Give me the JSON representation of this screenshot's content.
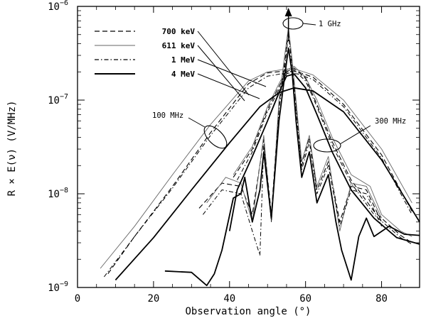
{
  "chart_data": {
    "type": "line",
    "xlabel": "Observation angle (°)",
    "ylabel": "R × E(ν) (V/MHz)",
    "xlim": [
      0,
      90
    ],
    "ylim": [
      1e-09,
      1e-06
    ],
    "yscale": "log",
    "grid": false,
    "legend_position": "top-left",
    "x_ticks": [
      {
        "value": 0,
        "label": "0"
      },
      {
        "value": 20,
        "label": "20"
      },
      {
        "value": 40,
        "label": "40"
      },
      {
        "value": 60,
        "label": "60"
      },
      {
        "value": 80,
        "label": "80"
      }
    ],
    "y_ticks": [
      {
        "value": 1e-09,
        "base": "10",
        "exp": "−9"
      },
      {
        "value": 1e-08,
        "base": "10",
        "exp": "−8"
      },
      {
        "value": 1e-07,
        "base": "10",
        "exp": "−7"
      },
      {
        "value": 1e-06,
        "base": "10",
        "exp": "−6"
      }
    ],
    "annotations": [
      {
        "text": "1 GHz",
        "x": 56.5,
        "y": 7e-07
      },
      {
        "text": "100 MHz",
        "x": 35,
        "y": 4e-08
      },
      {
        "text": "300 MHz",
        "x": 64,
        "y": 3.5e-08
      }
    ],
    "series": [
      {
        "name": "700 keV",
        "style": "dashed",
        "curves": [
          {
            "band": "100 MHz",
            "points": [
              [
                8,
                1.4e-09
              ],
              [
                15,
                3.5e-09
              ],
              [
                25,
                1.2e-08
              ],
              [
                35,
                4.5e-08
              ],
              [
                45,
                1.5e-07
              ],
              [
                50,
                1.95e-07
              ],
              [
                55,
                2.05e-07
              ],
              [
                58,
                2e-07
              ],
              [
                62,
                1.75e-07
              ],
              [
                70,
                9e-08
              ],
              [
                80,
                2.6e-08
              ],
              [
                88,
                6.5e-09
              ]
            ]
          },
          {
            "band": "300 MHz",
            "points": [
              [
                41,
                1.5e-08
              ],
              [
                46,
                3e-08
              ],
              [
                50,
                8e-08
              ],
              [
                53,
                1.4e-07
              ],
              [
                55,
                2e-07
              ],
              [
                57,
                2.2e-07
              ],
              [
                60,
                1.7e-07
              ],
              [
                63,
                9e-08
              ],
              [
                67,
                3.6e-08
              ],
              [
                72,
                1.4e-08
              ],
              [
                78,
                6.5e-09
              ],
              [
                85,
                3.6e-09
              ],
              [
                88,
                3e-09
              ]
            ]
          },
          {
            "band": "1 GHz",
            "points": [
              [
                32,
                7e-09
              ],
              [
                38,
                1.3e-08
              ],
              [
                43,
                1.2e-08
              ],
              [
                46,
                6e-09
              ],
              [
                49,
                3.8e-08
              ],
              [
                51,
                6e-09
              ],
              [
                53,
                9e-08
              ],
              [
                54.5,
                2.5e-07
              ],
              [
                55.5,
                5.5e-07
              ],
              [
                56.5,
                2.4e-07
              ],
              [
                57.5,
                9e-08
              ],
              [
                59,
                2e-08
              ],
              [
                61,
                4e-08
              ],
              [
                63,
                1.1e-08
              ],
              [
                66,
                2.2e-08
              ],
              [
                69,
                5e-09
              ],
              [
                72,
                1.2e-08
              ],
              [
                76,
                1.1e-08
              ],
              [
                80,
                5e-09
              ]
            ]
          }
        ]
      },
      {
        "name": "611 keV",
        "style": "dotted",
        "curves": [
          {
            "band": "100 MHz",
            "points": [
              [
                6,
                1.6e-09
              ],
              [
                15,
                4.5e-09
              ],
              [
                25,
                1.6e-08
              ],
              [
                35,
                5.5e-08
              ],
              [
                45,
                1.6e-07
              ],
              [
                50,
                2e-07
              ],
              [
                55,
                2.15e-07
              ],
              [
                58,
                2.1e-07
              ],
              [
                62,
                1.85e-07
              ],
              [
                70,
                1e-07
              ],
              [
                80,
                3e-08
              ],
              [
                88,
                8e-09
              ]
            ]
          },
          {
            "band": "300 MHz",
            "points": [
              [
                41,
                1.6e-08
              ],
              [
                46,
                3.2e-08
              ],
              [
                50,
                8.5e-08
              ],
              [
                53,
                1.5e-07
              ],
              [
                55,
                2.1e-07
              ],
              [
                57,
                2.3e-07
              ],
              [
                60,
                1.75e-07
              ],
              [
                63,
                1e-07
              ],
              [
                67,
                4e-08
              ],
              [
                72,
                1.6e-08
              ],
              [
                77,
                1.2e-08
              ],
              [
                80,
                6e-09
              ],
              [
                85,
                4e-09
              ],
              [
                88,
                3.5e-09
              ]
            ]
          },
          {
            "band": "1 GHz",
            "points": [
              [
                34,
                8e-09
              ],
              [
                39,
                1.5e-08
              ],
              [
                43,
                1.3e-08
              ],
              [
                46,
                5e-09
              ],
              [
                49,
                4.2e-08
              ],
              [
                51,
                5e-09
              ],
              [
                53,
                1e-07
              ],
              [
                54.5,
                3e-07
              ],
              [
                55.5,
                6e-07
              ],
              [
                56.5,
                2.6e-07
              ],
              [
                57.5,
                1e-07
              ],
              [
                59,
                2.2e-08
              ],
              [
                61,
                4.2e-08
              ],
              [
                63,
                1.2e-08
              ],
              [
                66,
                2.5e-08
              ],
              [
                69,
                4e-09
              ],
              [
                72,
                1.3e-08
              ],
              [
                76,
                1.2e-08
              ],
              [
                80,
                5.5e-09
              ]
            ]
          }
        ]
      },
      {
        "name": "1 MeV",
        "style": "dashdot",
        "curves": [
          {
            "band": "100 MHz",
            "points": [
              [
                7,
                1.3e-09
              ],
              [
                15,
                3.5e-09
              ],
              [
                25,
                1.15e-08
              ],
              [
                35,
                4.2e-08
              ],
              [
                45,
                1.35e-07
              ],
              [
                50,
                1.8e-07
              ],
              [
                55,
                1.95e-07
              ],
              [
                58,
                1.9e-07
              ],
              [
                62,
                1.65e-07
              ],
              [
                70,
                8.5e-08
              ],
              [
                80,
                2.4e-08
              ],
              [
                88,
                6e-09
              ]
            ]
          },
          {
            "band": "300 MHz",
            "points": [
              [
                42,
                1.4e-08
              ],
              [
                46,
                2.8e-08
              ],
              [
                50,
                7.5e-08
              ],
              [
                53,
                1.3e-07
              ],
              [
                55,
                1.9e-07
              ],
              [
                57,
                2.1e-07
              ],
              [
                60,
                1.6e-07
              ],
              [
                63,
                8.5e-08
              ],
              [
                67,
                3.3e-08
              ],
              [
                72,
                1.3e-08
              ],
              [
                78,
                6e-09
              ],
              [
                85,
                3.4e-09
              ],
              [
                88,
                2.9e-09
              ]
            ]
          },
          {
            "band": "1 GHz",
            "points": [
              [
                33,
                6e-09
              ],
              [
                38,
                1.1e-08
              ],
              [
                43,
                1e-08
              ],
              [
                46,
                4e-09
              ],
              [
                48,
                2.2e-09
              ],
              [
                49,
                3.4e-08
              ],
              [
                51,
                5e-09
              ],
              [
                53,
                8e-08
              ],
              [
                54.5,
                2.2e-07
              ],
              [
                55.5,
                5e-07
              ],
              [
                56.5,
                2.1e-07
              ],
              [
                57.5,
                8e-08
              ],
              [
                59,
                1.8e-08
              ],
              [
                61,
                3.6e-08
              ],
              [
                63,
                1e-08
              ],
              [
                66,
                2e-08
              ],
              [
                69,
                4.5e-09
              ],
              [
                72,
                1.1e-08
              ],
              [
                76,
                1e-08
              ],
              [
                80,
                4.5e-09
              ]
            ]
          }
        ]
      },
      {
        "name": "4 MeV",
        "style": "solid",
        "curves": [
          {
            "band": "100 MHz",
            "points": [
              [
                10,
                1.2e-09
              ],
              [
                20,
                3.4e-09
              ],
              [
                30,
                1.1e-08
              ],
              [
                40,
                3.5e-08
              ],
              [
                48,
                8.5e-08
              ],
              [
                53,
                1.2e-07
              ],
              [
                57,
                1.35e-07
              ],
              [
                62,
                1.25e-07
              ],
              [
                70,
                7.5e-08
              ],
              [
                80,
                2.3e-08
              ],
              [
                90,
                5e-09
              ]
            ]
          },
          {
            "band": "300 MHz",
            "points": [
              [
                40,
                4e-09
              ],
              [
                42,
                1.1e-08
              ],
              [
                46,
                2.5e-08
              ],
              [
                50,
                6e-08
              ],
              [
                53,
                1.2e-07
              ],
              [
                55,
                1.8e-07
              ],
              [
                57,
                1.9e-07
              ],
              [
                60,
                1.35e-07
              ],
              [
                63,
                7e-08
              ],
              [
                67,
                2.8e-08
              ],
              [
                72,
                1.1e-08
              ],
              [
                78,
                5.5e-09
              ],
              [
                84,
                3.4e-09
              ],
              [
                90,
                2.9e-09
              ]
            ]
          },
          {
            "band": "1 GHz",
            "points": [
              [
                23,
                1.5e-09
              ],
              [
                30,
                1.45e-09
              ],
              [
                34,
                1.05e-09
              ],
              [
                36,
                1.4e-09
              ],
              [
                38,
                2.5e-09
              ],
              [
                41,
                9e-09
              ],
              [
                43,
                1e-08
              ],
              [
                44,
                1.5e-08
              ],
              [
                46,
                5e-09
              ],
              [
                48,
                1.1e-08
              ],
              [
                49,
                2.8e-08
              ],
              [
                51,
                5.5e-09
              ],
              [
                53,
                6e-08
              ],
              [
                54.5,
                1.8e-07
              ],
              [
                55.5,
                3.6e-07
              ],
              [
                56.5,
                1.9e-07
              ],
              [
                57.5,
                6e-08
              ],
              [
                59,
                1.5e-08
              ],
              [
                61,
                2.8e-08
              ],
              [
                63,
                8e-09
              ],
              [
                66,
                1.6e-08
              ],
              [
                68,
                5e-09
              ],
              [
                69.5,
                2.5e-09
              ],
              [
                72,
                1.2e-09
              ],
              [
                74,
                3.5e-09
              ],
              [
                76,
                5.5e-09
              ],
              [
                78,
                3.5e-09
              ],
              [
                82,
                4.5e-09
              ],
              [
                86,
                3.7e-09
              ],
              [
                90,
                3.6e-09
              ]
            ]
          }
        ]
      }
    ]
  }
}
